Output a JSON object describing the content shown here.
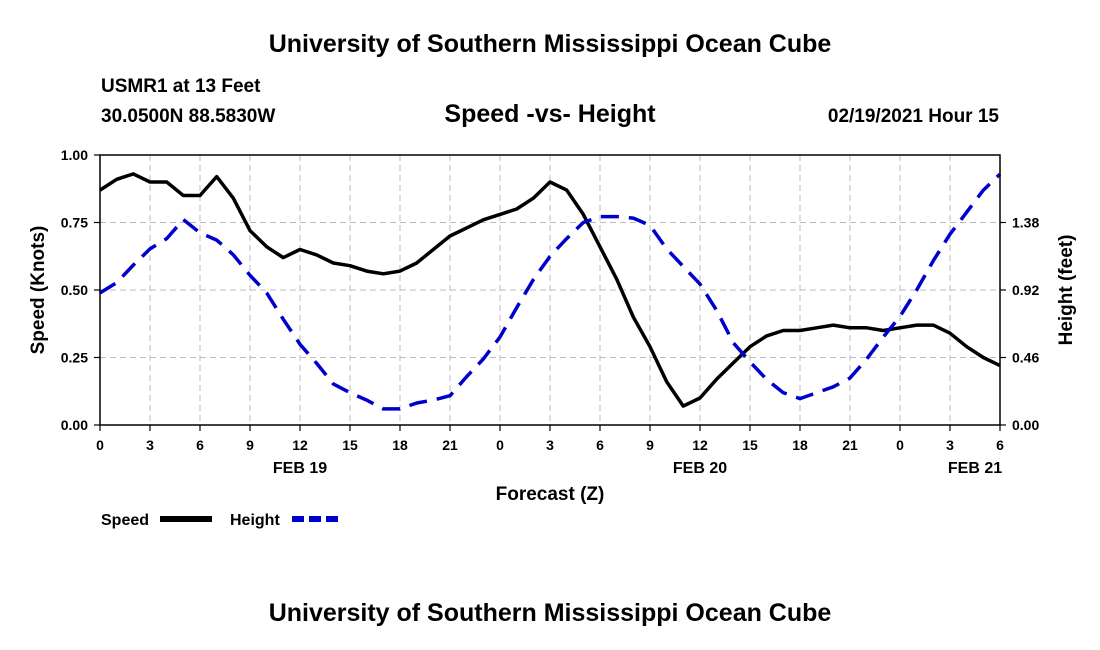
{
  "header": {
    "title": "University of Southern Mississippi Ocean Cube",
    "station": "USMR1 at 13 Feet",
    "coordinates": "30.0500N 88.5830W",
    "subtitle": "Speed -vs- Height",
    "datetime": "02/19/2021 Hour 15"
  },
  "footer": {
    "title": "University of Southern Mississippi Ocean Cube"
  },
  "chart_data": {
    "type": "line",
    "title": "Speed -vs- Height",
    "xlabel": "Forecast (Z)",
    "ylabel": "Speed (Knots)",
    "y2label": "Height (feet)",
    "xlim": [
      0,
      54
    ],
    "ylim": [
      0,
      1
    ],
    "y2lim": [
      0,
      1.84
    ],
    "grid": true,
    "x_ticks": [
      0,
      3,
      6,
      9,
      12,
      15,
      18,
      21,
      24,
      27,
      30,
      33,
      36,
      39,
      42,
      45,
      48,
      51,
      54
    ],
    "x_tick_labels": [
      "0",
      "3",
      "6",
      "9",
      "12",
      "15",
      "18",
      "21",
      "0",
      "3",
      "6",
      "9",
      "12",
      "15",
      "18",
      "21",
      "0",
      "3",
      "6"
    ],
    "date_labels": [
      {
        "x": 12,
        "label": "FEB 19"
      },
      {
        "x": 36,
        "label": "FEB 20"
      },
      {
        "x": 52.5,
        "label": "FEB 21"
      }
    ],
    "y_ticks": [
      0,
      0.25,
      0.5,
      0.75,
      1
    ],
    "y_tick_labels": [
      "0.00",
      "0.25",
      "0.50",
      "0.75",
      "1.00"
    ],
    "y2_ticks": [
      0,
      0.46,
      0.92,
      1.38
    ],
    "y2_tick_labels": [
      "0.00",
      "0.46",
      "0.92",
      "1.38"
    ],
    "legend": [
      {
        "name": "Speed",
        "color": "#000000",
        "style": "solid"
      },
      {
        "name": "Height",
        "color": "#0000cc",
        "style": "dashed"
      }
    ],
    "legend_position": "bottom-left",
    "series": [
      {
        "name": "Speed",
        "axis": "left",
        "color": "#000000",
        "style": "solid",
        "x": [
          0,
          1,
          2,
          3,
          4,
          5,
          6,
          7,
          8,
          9,
          10,
          11,
          12,
          13,
          14,
          15,
          16,
          17,
          18,
          19,
          20,
          21,
          22,
          23,
          24,
          25,
          26,
          27,
          28,
          29,
          30,
          31,
          32,
          33,
          34,
          35,
          36,
          37,
          38,
          39,
          40,
          41,
          42,
          43,
          44,
          45,
          46,
          47,
          48,
          49,
          50,
          51,
          52,
          53,
          54
        ],
        "values": [
          0.87,
          0.91,
          0.93,
          0.9,
          0.9,
          0.85,
          0.85,
          0.92,
          0.84,
          0.72,
          0.66,
          0.62,
          0.65,
          0.63,
          0.6,
          0.59,
          0.57,
          0.56,
          0.57,
          0.6,
          0.65,
          0.7,
          0.73,
          0.76,
          0.78,
          0.8,
          0.84,
          0.9,
          0.87,
          0.78,
          0.66,
          0.54,
          0.4,
          0.29,
          0.16,
          0.07,
          0.1,
          0.17,
          0.23,
          0.29,
          0.33,
          0.35,
          0.35,
          0.36,
          0.37,
          0.36,
          0.36,
          0.35,
          0.36,
          0.37,
          0.37,
          0.34,
          0.29,
          0.25,
          0.22
        ]
      },
      {
        "name": "Height",
        "axis": "right",
        "color": "#0000cc",
        "style": "dashed",
        "x": [
          0,
          1,
          2,
          3,
          4,
          5,
          6,
          7,
          8,
          9,
          10,
          11,
          12,
          13,
          14,
          15,
          16,
          17,
          18,
          19,
          20,
          21,
          22,
          23,
          24,
          25,
          26,
          27,
          28,
          29,
          30,
          31,
          32,
          33,
          34,
          35,
          36,
          37,
          38,
          39,
          40,
          41,
          42,
          43,
          44,
          45,
          46,
          47,
          48,
          49,
          50,
          51,
          52,
          53,
          54
        ],
        "values": [
          0.9,
          0.97,
          1.09,
          1.2,
          1.27,
          1.4,
          1.31,
          1.26,
          1.16,
          1.02,
          0.9,
          0.72,
          0.55,
          0.42,
          0.28,
          0.22,
          0.17,
          0.11,
          0.11,
          0.15,
          0.17,
          0.2,
          0.33,
          0.45,
          0.6,
          0.8,
          0.99,
          1.15,
          1.27,
          1.38,
          1.42,
          1.42,
          1.41,
          1.36,
          1.2,
          1.08,
          0.96,
          0.78,
          0.56,
          0.43,
          0.31,
          0.22,
          0.18,
          0.22,
          0.26,
          0.32,
          0.45,
          0.6,
          0.74,
          0.92,
          1.12,
          1.3,
          1.45,
          1.6,
          1.71
        ]
      }
    ]
  }
}
